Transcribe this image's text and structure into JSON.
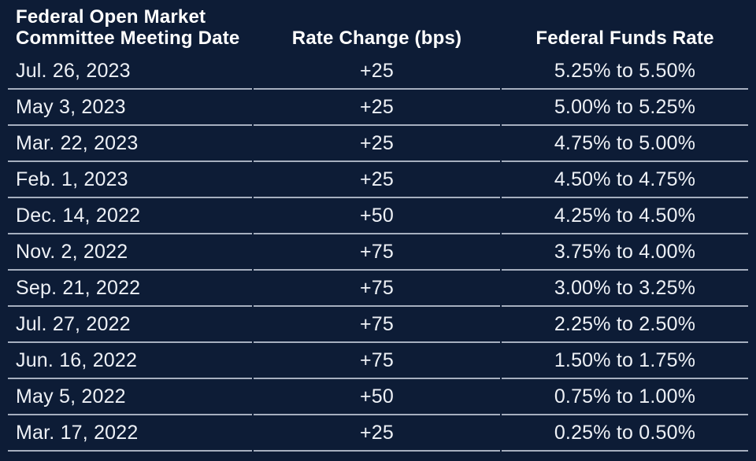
{
  "colors": {
    "bg": "#0d1c36",
    "line": "#a6afbf",
    "text": "#eef1f6",
    "htext": "#ffffff"
  },
  "table": {
    "header": {
      "col1_line1": "Federal Open Market",
      "col1_line2": "Committee Meeting Date",
      "col2": "Rate Change (bps)",
      "col3": "Federal Funds Rate"
    },
    "rows": [
      {
        "date": "Jul. 26, 2023",
        "change": "+25",
        "rate": "5.25% to 5.50%"
      },
      {
        "date": "May 3, 2023",
        "change": "+25",
        "rate": "5.00% to 5.25%"
      },
      {
        "date": "Mar. 22, 2023",
        "change": "+25",
        "rate": "4.75% to 5.00%"
      },
      {
        "date": "Feb. 1, 2023",
        "change": "+25",
        "rate": "4.50% to 4.75%"
      },
      {
        "date": "Dec. 14, 2022",
        "change": "+50",
        "rate": "4.25% to 4.50%"
      },
      {
        "date": "Nov. 2, 2022",
        "change": "+75",
        "rate": "3.75% to 4.00%"
      },
      {
        "date": "Sep. 21, 2022",
        "change": "+75",
        "rate": "3.00% to 3.25%"
      },
      {
        "date": "Jul. 27, 2022",
        "change": "+75",
        "rate": "2.25% to 2.50%"
      },
      {
        "date": "Jun. 16, 2022",
        "change": "+75",
        "rate": "1.50% to 1.75%"
      },
      {
        "date": "May 5, 2022",
        "change": "+50",
        "rate": "0.75% to 1.00%"
      },
      {
        "date": "Mar. 17, 2022",
        "change": "+25",
        "rate": "0.25% to 0.50%"
      }
    ]
  },
  "chart_data": {
    "type": "table",
    "columns": [
      "Federal Open Market Committee Meeting Date",
      "Rate Change (bps)",
      "Federal Funds Rate"
    ],
    "rows": [
      [
        "Jul. 26, 2023",
        "+25",
        "5.25% to 5.50%"
      ],
      [
        "May 3, 2023",
        "+25",
        "5.00% to 5.25%"
      ],
      [
        "Mar. 22, 2023",
        "+25",
        "4.75% to 5.00%"
      ],
      [
        "Feb. 1, 2023",
        "+25",
        "4.50% to 4.75%"
      ],
      [
        "Dec. 14, 2022",
        "+50",
        "4.25% to 4.50%"
      ],
      [
        "Nov. 2, 2022",
        "+75",
        "3.75% to 4.00%"
      ],
      [
        "Sep. 21, 2022",
        "+75",
        "3.00% to 3.25%"
      ],
      [
        "Jul. 27, 2022",
        "+75",
        "2.25% to 2.50%"
      ],
      [
        "Jun. 16, 2022",
        "+75",
        "1.50% to 1.75%"
      ],
      [
        "May 5, 2022",
        "+50",
        "0.75% to 1.00%"
      ],
      [
        "Mar. 17, 2022",
        "+25",
        "0.25% to 0.50%"
      ]
    ],
    "rate_change_bps_values": [
      25,
      25,
      25,
      25,
      50,
      75,
      75,
      75,
      75,
      50,
      25
    ],
    "target_range_upper_pct": [
      5.5,
      5.25,
      5.0,
      4.75,
      4.5,
      4.0,
      3.25,
      2.5,
      1.75,
      1.0,
      0.5
    ],
    "target_range_lower_pct": [
      5.25,
      5.0,
      4.75,
      4.5,
      4.25,
      3.75,
      3.0,
      2.25,
      1.5,
      0.75,
      0.25
    ]
  }
}
